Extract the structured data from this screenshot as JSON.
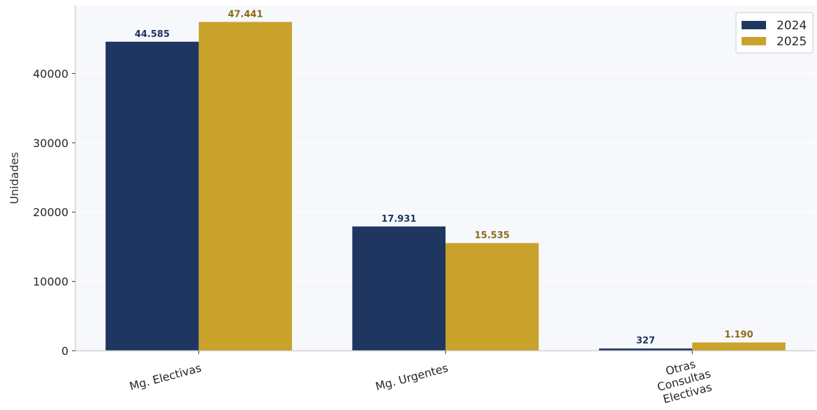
{
  "chart_data": {
    "type": "bar",
    "title": "",
    "xlabel": "",
    "ylabel": "Unidades",
    "categories": [
      [
        "Mg. Electivas"
      ],
      [
        "Mg. Urgentes"
      ],
      [
        "Otras",
        "Consultas",
        "Electivas"
      ]
    ],
    "series": [
      {
        "name": "2024",
        "color": "#1f3661",
        "values": [
          44585,
          17931,
          327
        ],
        "labels": [
          "44.585",
          "17.931",
          "327"
        ],
        "label_color": "#1f3661"
      },
      {
        "name": "2025",
        "color": "#c9a22c",
        "values": [
          47441,
          15535,
          1190
        ],
        "labels": [
          "47.441",
          "15.535",
          "1.190"
        ],
        "label_color": "#8a6a14"
      }
    ],
    "yticks": [
      0,
      10000,
      20000,
      30000,
      40000
    ],
    "ylim": [
      0,
      49800
    ],
    "grid": "horizontal",
    "legend_position": "top-right",
    "plot_background": "#f6f8fc",
    "grid_color": "#ffffff",
    "axis_color": "#c8c8c8"
  }
}
